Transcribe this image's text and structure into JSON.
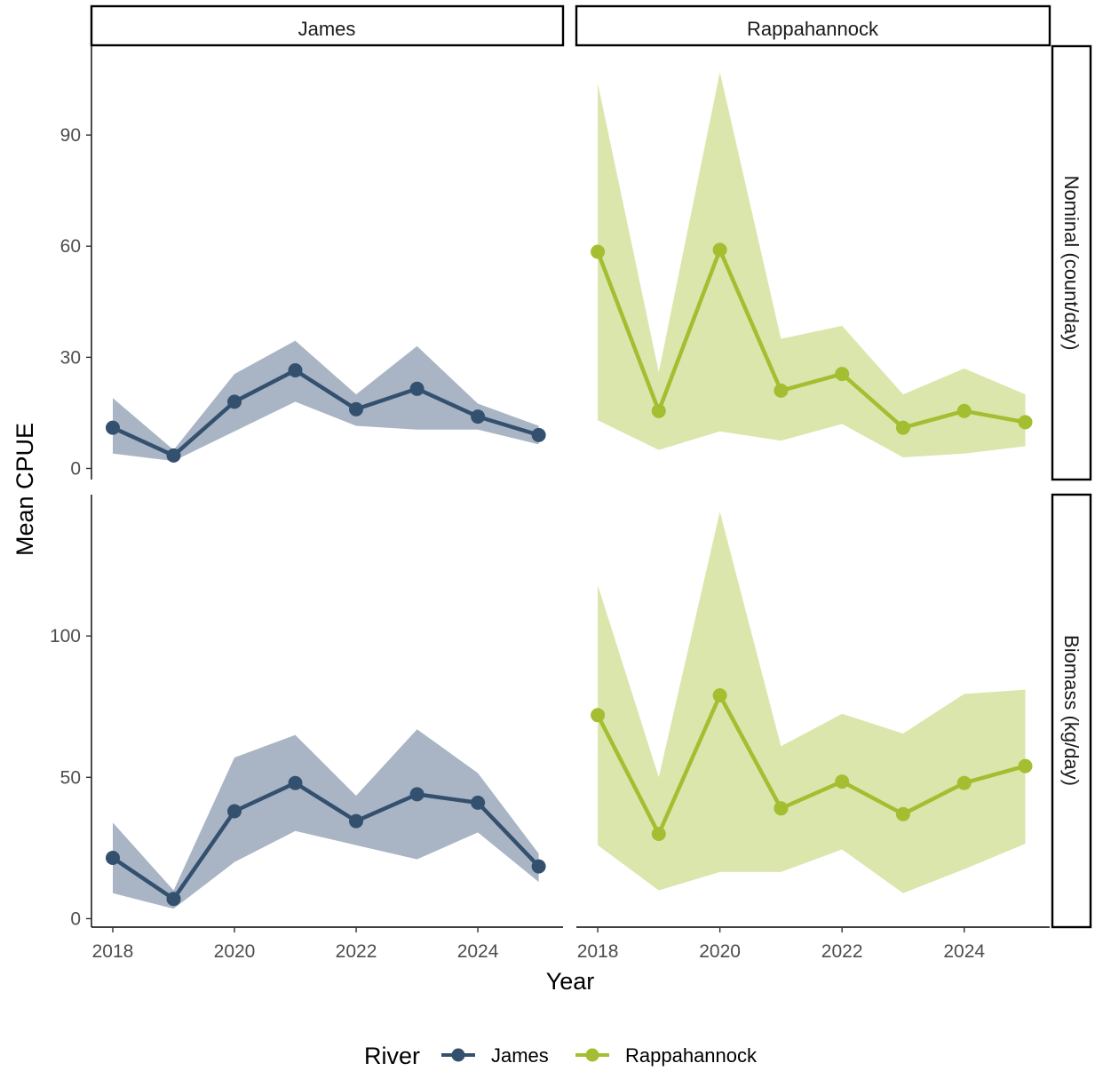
{
  "chart_data": {
    "type": "line",
    "facet_columns": [
      "James",
      "Rappahannock"
    ],
    "facet_rows": [
      "Nominal (count/day)",
      "Biomass (kg/day)"
    ],
    "xlabel": "Year",
    "ylabel": "Mean CPUE",
    "x_ticks": [
      2018,
      2020,
      2022,
      2024
    ],
    "x_range": [
      2017.65,
      2025.4
    ],
    "legend": {
      "title": "River",
      "position": "bottom",
      "entries": [
        "James",
        "Rappahannock"
      ]
    },
    "colors": {
      "James": "#34506f",
      "Rappahannock": "#a3be31",
      "James_band": "#a9b5c5",
      "Rappahannock_band": "#dbe6ac"
    },
    "grid": false,
    "rows": [
      {
        "name": "Nominal (count/day)",
        "ylim": [
          -3,
          114
        ],
        "y_ticks": [
          0,
          30,
          60,
          90
        ],
        "panels": [
          {
            "series": "James",
            "x": [
              2018,
              2019,
              2020,
              2021,
              2022,
              2023,
              2024,
              2025
            ],
            "y": [
              11,
              3.5,
              18,
              26.5,
              16,
              21.5,
              14,
              9
            ],
            "lower": [
              4,
              2,
              10,
              18,
              11.5,
              10.5,
              10.5,
              6.5
            ],
            "upper": [
              19,
              5,
              25.5,
              34.5,
              20,
              33,
              17.5,
              11.5
            ]
          },
          {
            "series": "Rappahannock",
            "x": [
              2018,
              2019,
              2020,
              2021,
              2022,
              2023,
              2024,
              2025
            ],
            "y": [
              58.5,
              15.5,
              59,
              21,
              25.5,
              11,
              15.5,
              12.5
            ],
            "lower": [
              13,
              5,
              10,
              7.5,
              12,
              3,
              4,
              6
            ],
            "upper": [
              104,
              26,
              107,
              35,
              38.5,
              20,
              27,
              20
            ]
          }
        ]
      },
      {
        "name": "Biomass (kg/day)",
        "ylim": [
          -3,
          150
        ],
        "y_ticks": [
          0,
          50,
          100
        ],
        "panels": [
          {
            "series": "James",
            "x": [
              2018,
              2019,
              2020,
              2021,
              2022,
              2023,
              2024,
              2025
            ],
            "y": [
              21.5,
              7,
              38,
              48,
              34.5,
              44,
              41,
              18.5
            ],
            "lower": [
              9,
              3.5,
              20,
              31,
              26,
              21,
              30.5,
              13
            ],
            "upper": [
              34,
              10,
              57,
              65,
              43.5,
              67,
              51.5,
              23
            ]
          },
          {
            "series": "Rappahannock",
            "x": [
              2018,
              2019,
              2020,
              2021,
              2022,
              2023,
              2024,
              2025
            ],
            "y": [
              72,
              30,
              79,
              39,
              48.5,
              37,
              48,
              54
            ],
            "lower": [
              26,
              10,
              16.5,
              16.5,
              24.5,
              9,
              17.5,
              26.5
            ],
            "upper": [
              118,
              50,
              144,
              61,
              72.5,
              65.5,
              79.5,
              81
            ]
          }
        ]
      }
    ]
  }
}
